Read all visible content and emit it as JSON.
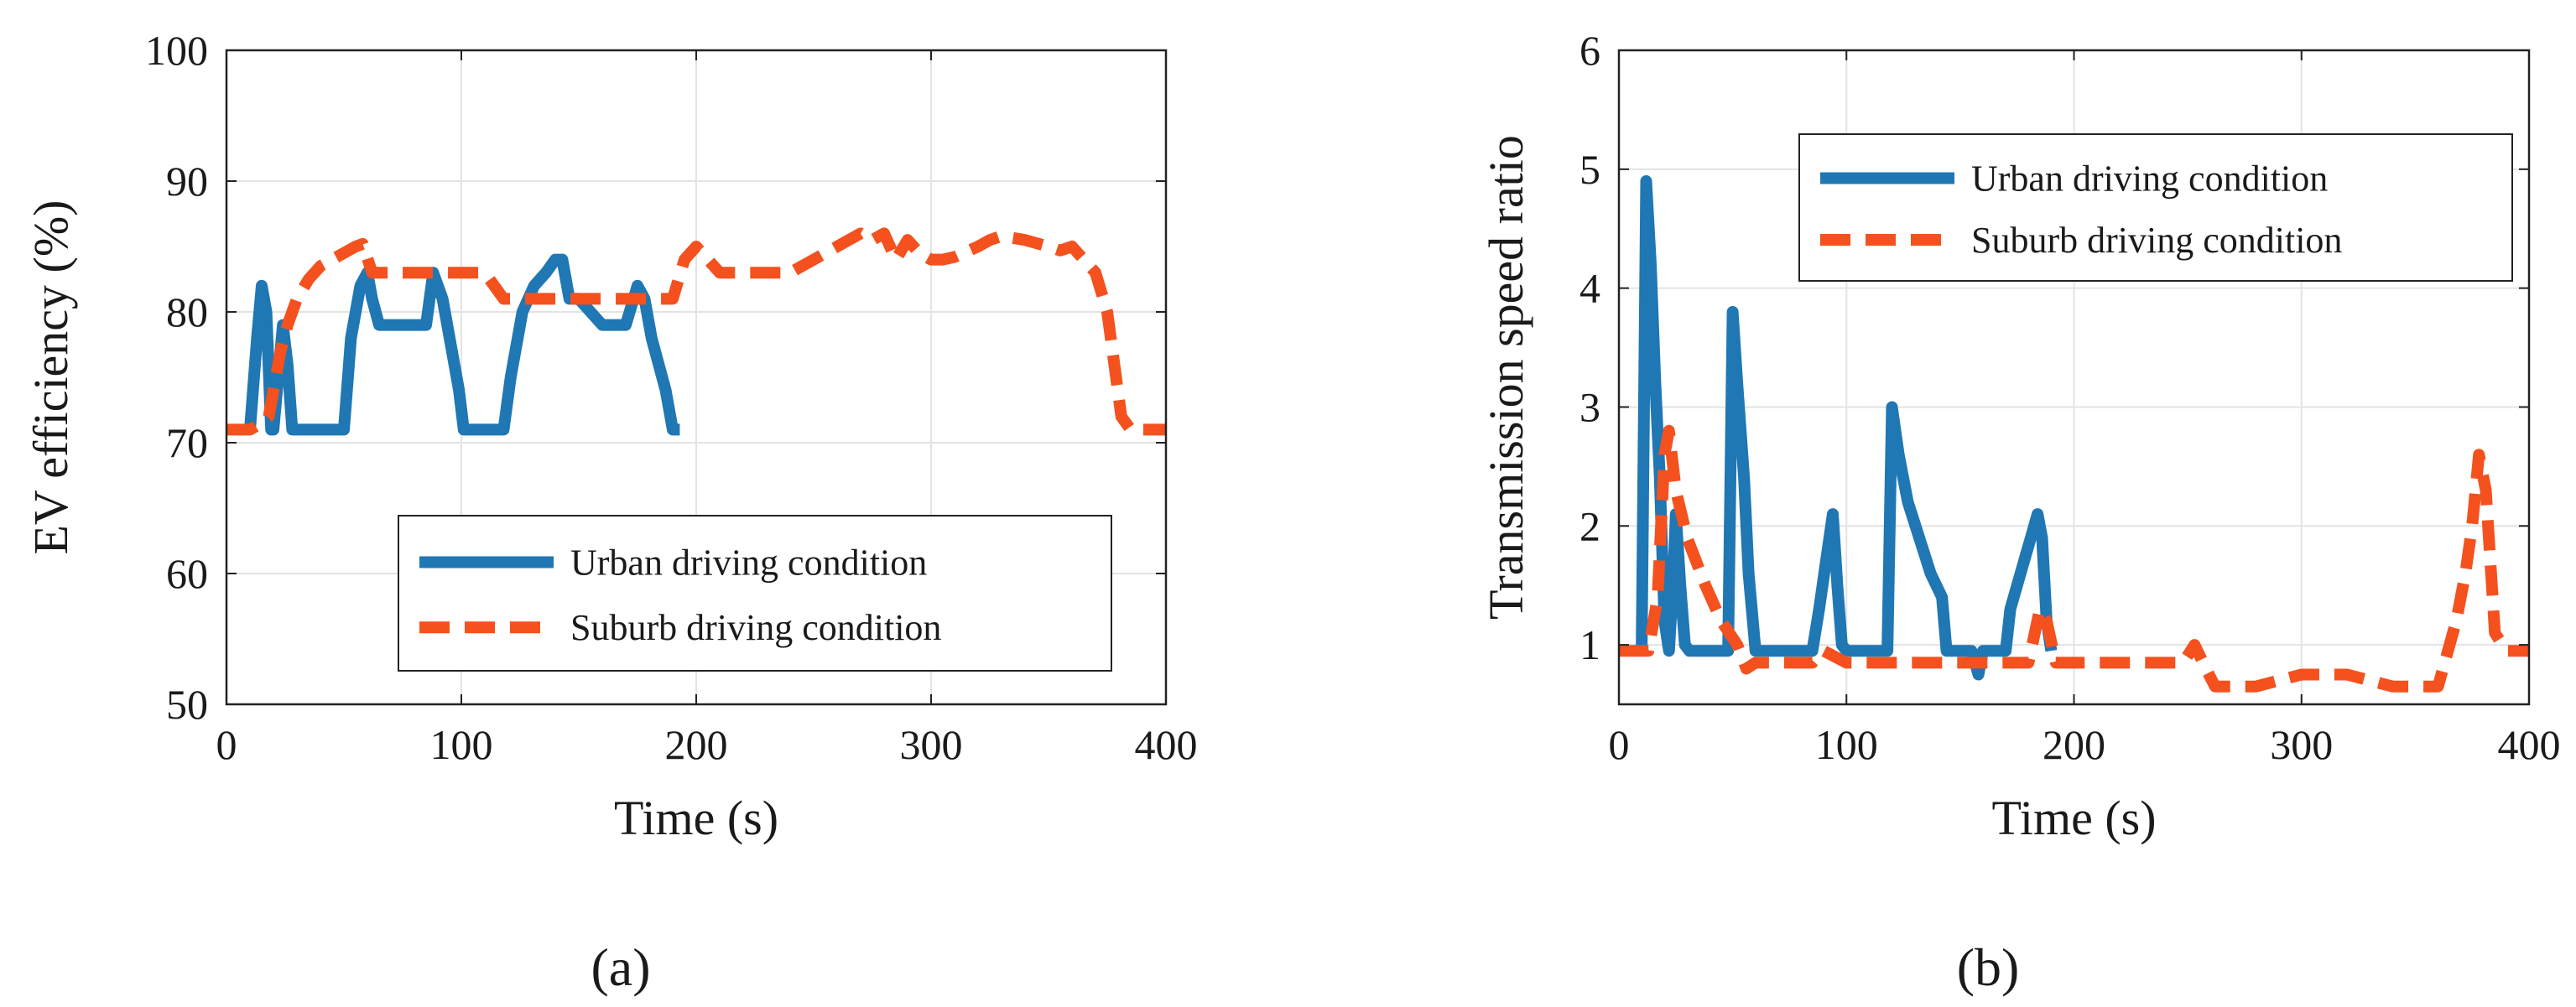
{
  "colors": {
    "urban": "#1f77b4",
    "suburb": "#f4511e",
    "grid": "#e3e3e3",
    "axis": "#222222"
  },
  "chart_data": [
    {
      "type": "line",
      "caption": "(a)",
      "xlabel": "Time (s)",
      "ylabel": "EV efficiency (%)",
      "xlim": [
        0,
        400
      ],
      "ylim": [
        50,
        100
      ],
      "xticks": [
        "0",
        "100",
        "200",
        "300",
        "400"
      ],
      "yticks": [
        "50",
        "60",
        "70",
        "80",
        "90",
        "100"
      ],
      "grid": true,
      "legend_position": "lower-right",
      "series": [
        {
          "name": "Urban driving condition",
          "style": "solid",
          "x": [
            10,
            13,
            15,
            17,
            19,
            20,
            22,
            24,
            26,
            28,
            31,
            35,
            45,
            50,
            53,
            57,
            60,
            62,
            65,
            70,
            75,
            80,
            85,
            88,
            92,
            96,
            99,
            101,
            105,
            110,
            115,
            118,
            121,
            126,
            131,
            136,
            140,
            143,
            146,
            150,
            155,
            160,
            165,
            170,
            175,
            178,
            181,
            184,
            187,
            190,
            193
          ],
          "y": [
            71,
            78,
            82,
            80,
            71,
            71,
            75,
            79,
            76,
            71,
            71,
            71,
            71,
            71,
            78,
            82,
            83,
            81,
            79,
            79,
            79,
            79,
            79,
            83,
            81,
            77,
            74,
            71,
            71,
            71,
            71,
            71,
            75,
            80,
            82,
            83,
            84,
            84,
            81,
            81,
            80,
            79,
            79,
            79,
            82,
            81,
            78,
            76,
            74,
            71,
            71
          ]
        },
        {
          "name": "Suburb driving condition",
          "style": "dashed",
          "x": [
            0,
            10,
            15,
            18,
            20,
            23,
            26,
            30,
            35,
            40,
            45,
            50,
            55,
            58,
            62,
            65,
            70,
            80,
            90,
            100,
            110,
            118,
            125,
            130,
            140,
            150,
            160,
            170,
            180,
            185,
            190,
            195,
            200,
            210,
            220,
            240,
            250,
            255,
            260,
            270,
            275,
            280,
            285,
            290,
            295,
            300,
            305,
            310,
            320,
            325,
            330,
            340,
            350,
            355,
            360,
            365,
            370,
            375,
            378,
            381,
            385,
            390,
            400
          ],
          "y": [
            71,
            71,
            71.5,
            72,
            74,
            77,
            79,
            81,
            82.5,
            83.5,
            84,
            84.5,
            85,
            85.2,
            83,
            83,
            83,
            83,
            83,
            83,
            83,
            81,
            81,
            81,
            81,
            81,
            81,
            81,
            81,
            81,
            81,
            84,
            85,
            83,
            83,
            83,
            84,
            84.5,
            85,
            86,
            85.5,
            86,
            84,
            85.5,
            84.5,
            84,
            84,
            84.2,
            85,
            85.5,
            85.8,
            85.5,
            85,
            84.7,
            85,
            84,
            83,
            80,
            76,
            72,
            71,
            71,
            71
          ]
        }
      ]
    },
    {
      "type": "line",
      "caption": "(b)",
      "xlabel": "Time (s)",
      "ylabel": "Transmission speed ratio",
      "xlim": [
        0,
        400
      ],
      "ylim": [
        0.5,
        6
      ],
      "xticks": [
        "0",
        "100",
        "200",
        "300",
        "400"
      ],
      "yticks": [
        "1",
        "2",
        "3",
        "4",
        "5",
        "6"
      ],
      "grid": true,
      "legend_position": "top-right",
      "series": [
        {
          "name": "Urban driving condition",
          "style": "solid",
          "x": [
            10,
            12,
            14,
            16,
            18,
            20,
            22,
            24,
            25,
            27,
            29,
            31,
            35,
            40,
            45,
            48,
            50,
            52,
            55,
            57,
            60,
            62,
            64,
            70,
            80,
            85,
            88,
            91,
            94,
            96,
            98,
            100,
            105,
            110,
            115,
            118,
            120,
            123,
            127,
            132,
            137,
            142,
            144,
            147,
            150,
            155,
            158,
            160,
            165,
            170,
            172,
            175,
            178,
            181,
            184,
            186,
            188,
            190
          ],
          "y": [
            0.95,
            4.9,
            4.2,
            3.2,
            2.4,
            1.2,
            0.95,
            1.6,
            2.1,
            1.5,
            1.0,
            0.95,
            0.95,
            0.95,
            0.95,
            0.95,
            3.8,
            3.2,
            2.4,
            1.6,
            0.95,
            0.95,
            0.95,
            0.95,
            0.95,
            0.95,
            1.3,
            1.7,
            2.1,
            1.5,
            1.0,
            0.95,
            0.95,
            0.95,
            0.95,
            0.95,
            3.0,
            2.6,
            2.2,
            1.9,
            1.6,
            1.4,
            0.95,
            0.95,
            0.95,
            0.95,
            0.75,
            0.95,
            0.95,
            0.95,
            1.3,
            1.5,
            1.7,
            1.9,
            2.1,
            1.9,
            1.2,
            0.95
          ]
        },
        {
          "name": "Suburb driving condition",
          "style": "dashed",
          "x": [
            0,
            8,
            13,
            17,
            20,
            22,
            25,
            30,
            38,
            45,
            52,
            56,
            60,
            70,
            85,
            90,
            100,
            120,
            140,
            160,
            180,
            185,
            188,
            192,
            200,
            220,
            240,
            248,
            253,
            258,
            262,
            270,
            280,
            300,
            320,
            340,
            350,
            360,
            368,
            372,
            375,
            378,
            381,
            385,
            390,
            400
          ],
          "y": [
            0.95,
            0.95,
            0.95,
            1.4,
            2.6,
            2.8,
            2.3,
            1.9,
            1.5,
            1.2,
            1.0,
            0.8,
            0.85,
            0.85,
            0.85,
            0.95,
            0.85,
            0.85,
            0.85,
            0.85,
            0.85,
            1.3,
            1.2,
            0.85,
            0.85,
            0.85,
            0.85,
            0.85,
            1.0,
            0.8,
            0.65,
            0.65,
            0.65,
            0.75,
            0.75,
            0.65,
            0.65,
            0.65,
            1.2,
            1.6,
            2.0,
            2.6,
            2.3,
            1.1,
            0.95,
            0.95
          ]
        }
      ]
    }
  ]
}
